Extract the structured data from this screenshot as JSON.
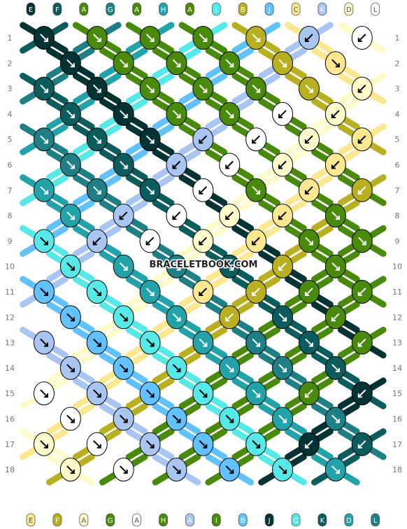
{
  "watermark": "BRACELETBOOK.COM",
  "string_letters": [
    "E",
    "F",
    "A",
    "G",
    "A",
    "H",
    "A",
    "I",
    "B",
    "J",
    "C",
    "K",
    "D",
    "L"
  ],
  "row_numbers": [
    "1",
    "2",
    "3",
    "4",
    "5",
    "6",
    "7",
    "8",
    "9",
    "10",
    "11",
    "12",
    "13",
    "14",
    "15",
    "16",
    "17",
    "18"
  ],
  "colors": {
    "A": "#4a8a0a",
    "B": "#b8b020",
    "C": "#fce890",
    "D": "#fffccc",
    "E": "#033333",
    "F": "#0b5c5c",
    "G": "#1e7f84",
    "H": "#21a3a9",
    "I": "#57e8e8",
    "J": "#61c2ff",
    "K": "#a9c5f2",
    "L": "#ffffff"
  },
  "knot_arrows": [
    [
      "fwd",
      "fwd",
      "fwd",
      "fwd",
      "fwd",
      "bwd",
      "bwd",
      "bwd",
      "bwd"
    ],
    [
      "fwd",
      "fwd",
      "fwd",
      "fwd",
      "fwd",
      "fwd",
      "fwd",
      "fwd"
    ],
    [
      "fwd",
      "fwd",
      "fwd",
      "fwd",
      "fwd",
      "fwd",
      "bwd",
      "bwd",
      "bwd"
    ],
    [
      "fwd",
      "fwd",
      "fwd",
      "fwd",
      "bwd",
      "bwd",
      "bwd",
      "bwd"
    ],
    [
      "fwd",
      "fwd",
      "fwd",
      "bwd",
      "bwd",
      "bwd",
      "bwd",
      "bwd",
      "bwd"
    ],
    [
      "fwd",
      "fwd",
      "bwd",
      "bwd",
      "bwd",
      "bwd",
      "bwd",
      "bwd"
    ],
    [
      "fwd",
      "fwd",
      "fwd",
      "bwd",
      "fwd",
      "bwd",
      "bwd",
      "bwd",
      "bwd"
    ],
    [
      "fwd",
      "bwd",
      "bwd",
      "bwd",
      "bwd",
      "fwd",
      "fwd",
      "fwd"
    ],
    [
      "fwd",
      "bwd",
      "bwd",
      "bwd",
      "bwd",
      "fwd",
      "fwd",
      "fwd",
      "fwd"
    ],
    [
      "fwd",
      "fwd",
      "fwd",
      "fwd",
      "bwd",
      "fwd",
      "fwd",
      "fwd"
    ],
    [
      "fwd",
      "fwd",
      "fwd",
      "bwd",
      "bwd",
      "bwd",
      "bwd",
      "fwd",
      "fwd"
    ],
    [
      "fwd",
      "fwd",
      "fwd",
      "bwd",
      "fwd",
      "bwd",
      "bwd",
      "bwd"
    ],
    [
      "fwd",
      "fwd",
      "fwd",
      "fwd",
      "fwd",
      "fwd",
      "bwd",
      "bwd",
      "bwd"
    ],
    [
      "fwd",
      "fwd",
      "fwd",
      "fwd",
      "fwd",
      "fwd",
      "fwd",
      "bwd"
    ],
    [
      "fwd",
      "fwd",
      "fwd",
      "fwd",
      "fwd",
      "bwd",
      "bwd",
      "bwd",
      "bwd"
    ],
    [
      "fwd",
      "fwd",
      "fwd",
      "fwd",
      "fwd",
      "fwd",
      "bwd",
      "bwd"
    ],
    [
      "fwd",
      "fwd",
      "fwd",
      "fwd",
      "fwd",
      "bwd",
      "bwd",
      "bwd",
      "bwd"
    ],
    [
      "fwd",
      "fwd",
      "fwd",
      "fwd",
      "fwd",
      "fwd",
      "fwd",
      "fwd"
    ]
  ]
}
